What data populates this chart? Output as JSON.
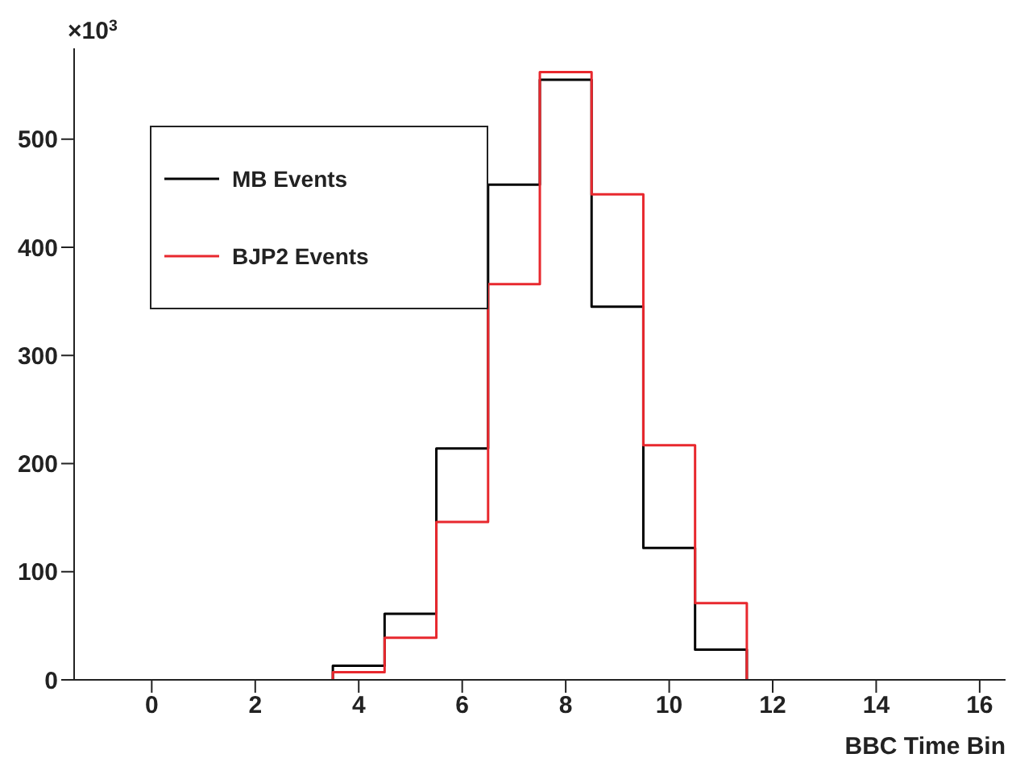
{
  "chart_data": {
    "type": "histogram",
    "xlabel": "BBC Time Bin",
    "ylabel": "×10$^{3}$",
    "bins": [
      3.5,
      4.5,
      5.5,
      6.5,
      7.5,
      8.5,
      9.5,
      10.5,
      11.5
    ],
    "series": [
      {
        "name": "MB Events",
        "color": "#000000",
        "values": [
          13,
          61,
          214,
          458,
          555,
          345,
          122,
          28
        ]
      },
      {
        "name": "BJP2 Events",
        "color": "#e8282e",
        "values": [
          7,
          39,
          146,
          366,
          562,
          449,
          217,
          71
        ]
      }
    ],
    "xlim": [
      -1.5,
      16.5
    ],
    "xticks": [
      0,
      2,
      4,
      6,
      8,
      10,
      12,
      14,
      16
    ],
    "ylim": [
      0,
      584
    ],
    "yticks": [
      0,
      100,
      200,
      300,
      400,
      500
    ],
    "legend": "top left"
  }
}
